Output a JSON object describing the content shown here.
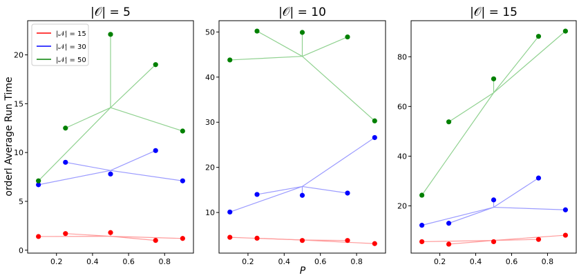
{
  "figure": {
    "ylabel": "orderl Average Run Time",
    "xlabel": "P"
  },
  "legend": [
    {
      "label": "|𝒩| = 15",
      "color": "#ff0000"
    },
    {
      "label": "|𝒩| = 30",
      "color": "#0000ff"
    },
    {
      "label": "|𝒩| = 50",
      "color": "#008000"
    }
  ],
  "chart_data": [
    {
      "type": "scatter",
      "title": "|𝒪| = 5",
      "xlim": [
        0.04,
        0.96
      ],
      "ylim": [
        -0.3,
        23.5
      ],
      "xticks": [
        0.2,
        0.4,
        0.6,
        0.8
      ],
      "xtick_labels": [
        "0.2",
        "0.4",
        "0.6",
        "0.8"
      ],
      "yticks": [
        0,
        5,
        10,
        15,
        20
      ],
      "ytick_labels": [
        "0",
        "5",
        "10",
        "15",
        "20"
      ],
      "series": [
        {
          "name": "|𝒩| = 15",
          "color": "#ff0000",
          "x": [
            0.1,
            0.25,
            0.5,
            0.75,
            0.9
          ],
          "y": [
            1.4,
            1.7,
            1.8,
            1.0,
            1.2
          ],
          "centroid": [
            0.5,
            1.42
          ]
        },
        {
          "name": "|𝒩| = 30",
          "color": "#0000ff",
          "x": [
            0.1,
            0.25,
            0.5,
            0.75,
            0.9
          ],
          "y": [
            6.7,
            9.0,
            7.8,
            10.2,
            7.1
          ],
          "centroid": [
            0.5,
            8.16
          ]
        },
        {
          "name": "|𝒩| = 50",
          "color": "#008000",
          "x": [
            0.1,
            0.25,
            0.5,
            0.75,
            0.9
          ],
          "y": [
            7.1,
            12.5,
            22.1,
            19.0,
            12.2
          ],
          "centroid": [
            0.5,
            14.6
          ]
        }
      ]
    },
    {
      "type": "scatter",
      "title": "|𝒪| = 10",
      "xlim": [
        0.04,
        0.96
      ],
      "ylim": [
        1.0,
        52.5
      ],
      "xticks": [
        0.2,
        0.4,
        0.6,
        0.8
      ],
      "xtick_labels": [
        "0.2",
        "0.4",
        "0.6",
        "0.8"
      ],
      "yticks": [
        10,
        20,
        30,
        40,
        50
      ],
      "ytick_labels": [
        "10",
        "20",
        "30",
        "40",
        "50"
      ],
      "series": [
        {
          "name": "|𝒩| = 15",
          "color": "#ff0000",
          "x": [
            0.1,
            0.25,
            0.5,
            0.75,
            0.9
          ],
          "y": [
            4.5,
            4.3,
            3.8,
            3.8,
            3.1
          ],
          "centroid": [
            0.5,
            3.9
          ]
        },
        {
          "name": "|𝒩| = 30",
          "color": "#0000ff",
          "x": [
            0.1,
            0.25,
            0.5,
            0.75,
            0.9
          ],
          "y": [
            10.1,
            14.0,
            13.8,
            14.3,
            26.6
          ],
          "centroid": [
            0.5,
            15.76
          ]
        },
        {
          "name": "|𝒩| = 50",
          "color": "#008000",
          "x": [
            0.1,
            0.25,
            0.5,
            0.75,
            0.9
          ],
          "y": [
            43.8,
            50.2,
            49.9,
            48.9,
            30.3
          ],
          "centroid": [
            0.5,
            44.6
          ]
        }
      ]
    },
    {
      "type": "scatter",
      "title": "|𝒪| = 15",
      "xlim": [
        0.04,
        0.96
      ],
      "ylim": [
        1.0,
        94.5
      ],
      "xticks": [
        0.2,
        0.4,
        0.6,
        0.8
      ],
      "xtick_labels": [
        "0.2",
        "0.4",
        "0.6",
        "0.8"
      ],
      "yticks": [
        20,
        40,
        60,
        80
      ],
      "ytick_labels": [
        "20",
        "40",
        "60",
        "80"
      ],
      "series": [
        {
          "name": "|𝒩| = 15",
          "color": "#ff0000",
          "x": [
            0.1,
            0.25,
            0.5,
            0.75,
            0.9
          ],
          "y": [
            5.6,
            4.6,
            5.6,
            6.5,
            8.2
          ],
          "centroid": [
            0.5,
            6.1
          ]
        },
        {
          "name": "|𝒩| = 30",
          "color": "#0000ff",
          "x": [
            0.1,
            0.25,
            0.5,
            0.75,
            0.9
          ],
          "y": [
            12.2,
            13.0,
            22.4,
            31.2,
            18.4
          ],
          "centroid": [
            0.5,
            19.44
          ]
        },
        {
          "name": "|𝒩| = 50",
          "color": "#008000",
          "x": [
            0.1,
            0.25,
            0.5,
            0.75,
            0.9
          ],
          "y": [
            24.3,
            53.8,
            71.1,
            88.2,
            90.3
          ],
          "centroid": [
            0.5,
            65.5
          ]
        }
      ]
    }
  ]
}
